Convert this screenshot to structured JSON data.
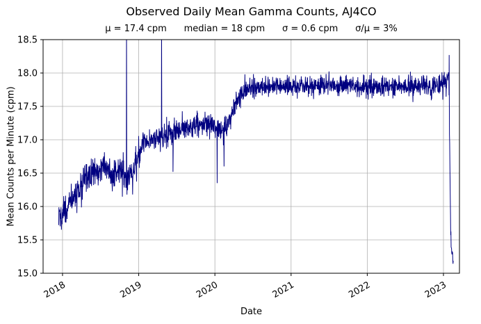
{
  "figure": {
    "background": "#ffffff"
  },
  "chart_data": {
    "type": "line",
    "title": "Observed Daily Mean Gamma Counts, AJ4CO",
    "subtitle": "μ = 17.4 cpm      median = 18 cpm      σ = 0.6 cpm      σ/μ = 3%",
    "stats": {
      "mu": "17.4 cpm",
      "median": "18 cpm",
      "sigma": "0.6 cpm",
      "sigma_over_mu": "3%"
    },
    "xlabel": "Date",
    "ylabel": "Mean Counts per Minute (cpm)",
    "xlim": [
      2017.745,
      2023.21
    ],
    "ylim": [
      15.0,
      18.5
    ],
    "xticks": [
      2018,
      2019,
      2020,
      2021,
      2022,
      2023
    ],
    "xtick_rotation_deg": 30,
    "yticks": [
      15.0,
      15.5,
      16.0,
      16.5,
      17.0,
      17.5,
      18.0,
      18.5
    ],
    "grid": true,
    "legend": "none",
    "line_color": "#000080",
    "grid_color": "#b0b0b0",
    "axis_color": "#000000",
    "series_model": {
      "description": "Daily mean gamma counts reconstructed as a piecewise-linear trend plus gaussian daily noise; spikes are single-day outliers read from the plot.",
      "x_start": 2017.95,
      "x_end": 2023.13,
      "samples_per_year": 365,
      "trend_points": [
        [
          2017.95,
          15.82
        ],
        [
          2018.0,
          15.92
        ],
        [
          2018.1,
          16.05
        ],
        [
          2018.2,
          16.25
        ],
        [
          2018.33,
          16.45
        ],
        [
          2018.45,
          16.55
        ],
        [
          2018.55,
          16.62
        ],
        [
          2018.65,
          16.45
        ],
        [
          2018.75,
          16.58
        ],
        [
          2018.85,
          16.42
        ],
        [
          2018.95,
          16.58
        ],
        [
          2019.05,
          16.95
        ],
        [
          2019.2,
          17.02
        ],
        [
          2019.4,
          17.08
        ],
        [
          2019.6,
          17.17
        ],
        [
          2019.8,
          17.22
        ],
        [
          2019.95,
          17.25
        ],
        [
          2020.08,
          17.12
        ],
        [
          2020.2,
          17.3
        ],
        [
          2020.3,
          17.62
        ],
        [
          2020.42,
          17.78
        ],
        [
          2020.7,
          17.8
        ],
        [
          2021.0,
          17.8
        ],
        [
          2021.5,
          17.82
        ],
        [
          2022.0,
          17.8
        ],
        [
          2022.5,
          17.8
        ],
        [
          2023.0,
          17.82
        ],
        [
          2023.05,
          17.85
        ],
        [
          2023.07,
          18.0
        ],
        [
          2023.085,
          16.6
        ],
        [
          2023.095,
          15.55
        ],
        [
          2023.11,
          15.3
        ],
        [
          2023.13,
          15.13
        ]
      ],
      "noise_profile": [
        {
          "until": 2019.0,
          "std": 0.105
        },
        {
          "until": 2020.45,
          "std": 0.09
        },
        {
          "until": 2023.05,
          "std": 0.075
        },
        {
          "until": 2023.3,
          "std": 0.06
        }
      ],
      "spikes": [
        {
          "x": 2018.84,
          "y": 18.75
        },
        {
          "x": 2018.92,
          "y": 16.18
        },
        {
          "x": 2019.3,
          "y": 18.75
        },
        {
          "x": 2019.45,
          "y": 16.52
        },
        {
          "x": 2020.03,
          "y": 16.35
        },
        {
          "x": 2020.12,
          "y": 16.6
        },
        {
          "x": 2023.075,
          "y": 18.27
        }
      ]
    }
  }
}
